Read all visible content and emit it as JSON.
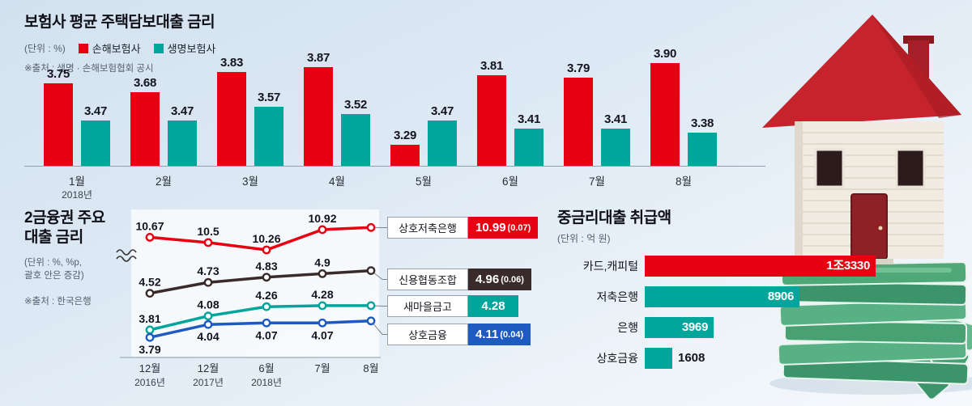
{
  "colors": {
    "red": "#e60012",
    "teal": "#00a59b",
    "dark": "#3a2b2b",
    "blue": "#1d5ac2",
    "background": "#dde9f4"
  },
  "chart_data": [
    {
      "id": "insurance-mortgage-rates",
      "type": "bar",
      "title": "보험사 평균 주택담보대출 금리",
      "unit_label": "(단위 : %)",
      "source": "※출처 : 생명 · 손해보험협회 공시",
      "categories": [
        "1월",
        "2월",
        "3월",
        "4월",
        "5월",
        "6월",
        "7월",
        "8월"
      ],
      "x_sub_label": "2018년",
      "series": [
        {
          "name": "손해보험사",
          "color": "#e60012",
          "values": [
            3.75,
            3.68,
            3.83,
            3.87,
            3.29,
            3.81,
            3.79,
            3.9
          ]
        },
        {
          "name": "생명보험사",
          "color": "#00a59b",
          "values": [
            3.47,
            3.47,
            3.57,
            3.52,
            3.47,
            3.41,
            3.41,
            3.38
          ]
        }
      ],
      "ylim": [
        3.1,
        4.0
      ],
      "grid": false,
      "legend_position": "top"
    },
    {
      "id": "secondary-sector-loan-rates",
      "type": "line",
      "title_lines": [
        "2금융권 주요",
        "대출 금리"
      ],
      "unit_lines": [
        "(단위 : %, %p,",
        "괄호 안은 증감)"
      ],
      "source": "※출처 : 한국은행",
      "x": [
        "12월",
        "12월",
        "6월",
        "7월",
        "8월"
      ],
      "x_year_labels": [
        "2016년",
        "2017년",
        "2018년",
        "",
        ""
      ],
      "axis_break": true,
      "series": [
        {
          "name": "상호저축은행",
          "color": "#e60012",
          "values": [
            10.67,
            10.5,
            10.26,
            10.92,
            10.99
          ],
          "last_label": "10.99",
          "change": "(0.07)"
        },
        {
          "name": "신용협동조합",
          "color": "#3a2b2b",
          "values": [
            4.52,
            4.73,
            4.83,
            4.9,
            4.96
          ],
          "last_label": "4.96",
          "change": "(0.06)"
        },
        {
          "name": "새마을금고",
          "color": "#00a59b",
          "values": [
            3.81,
            4.08,
            4.26,
            4.28,
            4.28
          ],
          "last_label": "4.28",
          "change": ""
        },
        {
          "name": "상호금융",
          "color": "#1d5ac2",
          "values": [
            3.79,
            4.04,
            4.07,
            4.07,
            4.11
          ],
          "last_label": "4.11",
          "change": "(0.04)"
        }
      ],
      "grid": false,
      "legend_position": "right"
    },
    {
      "id": "mid-rate-loan-volume",
      "type": "bar",
      "orientation": "horizontal",
      "title": "중금리대출 취급액",
      "unit_label": "(단위 : 억 원)",
      "categories": [
        "카드,캐피털",
        "저축은행",
        "은행",
        "상호금융"
      ],
      "values": [
        13330,
        8906,
        3969,
        1608
      ],
      "value_labels": [
        "1조3330",
        "8906",
        "3969",
        "1608"
      ],
      "bar_colors": [
        "#e60012",
        "#00a59b",
        "#00a59b",
        "#00a59b"
      ],
      "grid": false
    }
  ]
}
